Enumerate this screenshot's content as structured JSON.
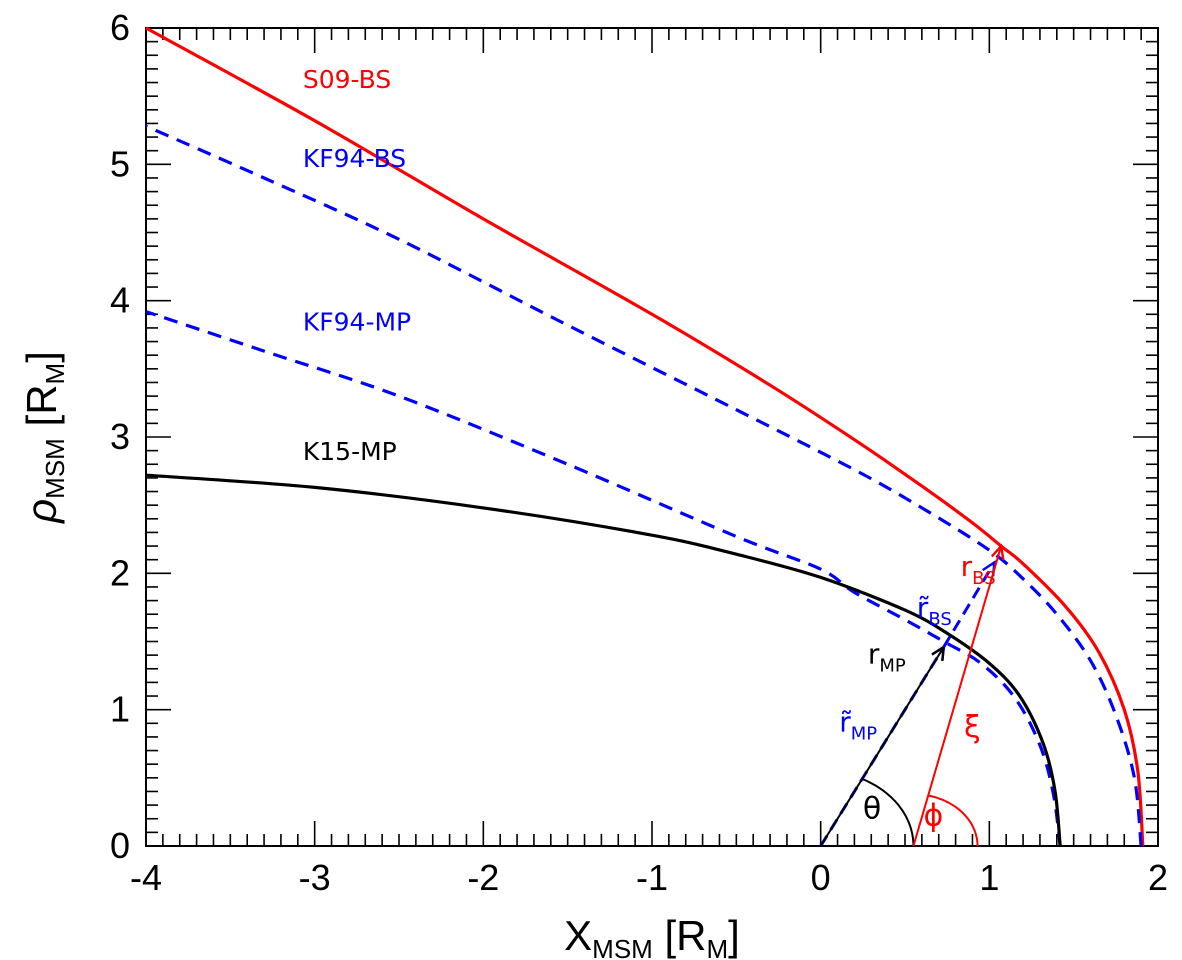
{
  "chart_data": {
    "type": "line",
    "xlabel": {
      "main": "X",
      "sub": "MSM",
      "unit_open": " [R",
      "unit_sub": "M",
      "unit_close": "]"
    },
    "ylabel": {
      "main": "ρ",
      "sub": "MSM",
      "unit_open": " [R",
      "unit_sub": "M",
      "unit_close": "]"
    },
    "xlim": [
      -4,
      2
    ],
    "ylim": [
      0,
      6
    ],
    "x_ticks": [
      -4,
      -3,
      -2,
      -1,
      0,
      1,
      2
    ],
    "x_tick_labels": [
      "-4",
      "-3",
      "-2",
      "-1",
      "0",
      "1",
      "2"
    ],
    "y_ticks": [
      0,
      1,
      2,
      3,
      4,
      5,
      6
    ],
    "y_tick_labels": [
      "0",
      "1",
      "2",
      "3",
      "4",
      "5",
      "6"
    ],
    "grid": false,
    "series": [
      {
        "name": "S09-BS",
        "color": "#ff0000",
        "style": "solid",
        "x": [
          1.91,
          1.88,
          1.8,
          1.65,
          1.45,
          1.2,
          1.07,
          0.9,
          0.6,
          0.2,
          -0.3,
          -1.0,
          -2.0,
          -3.0,
          -4.0
        ],
        "y": [
          0.0,
          0.55,
          1.0,
          1.42,
          1.76,
          2.07,
          2.2,
          2.37,
          2.64,
          2.98,
          3.38,
          3.9,
          4.6,
          5.32,
          6.0
        ]
      },
      {
        "name": "KF94-BS",
        "color": "#0000ff",
        "style": "dashed",
        "x": [
          1.9,
          1.86,
          1.75,
          1.6,
          1.4,
          1.2,
          1.0,
          0.6,
          0.2,
          -0.5,
          -1.5,
          -2.5,
          -3.3,
          -4.0
        ],
        "y": [
          0.0,
          0.5,
          0.96,
          1.36,
          1.7,
          1.96,
          2.17,
          2.48,
          2.76,
          3.2,
          3.82,
          4.45,
          4.9,
          5.28
        ]
      },
      {
        "name": "KF94-MP",
        "color": "#0000ff",
        "style": "dashed",
        "x": [
          1.42,
          1.38,
          1.3,
          1.15,
          0.95,
          0.73,
          0.5,
          0.2,
          0.0,
          -0.5,
          -1.5,
          -2.5,
          -3.3,
          -4.0
        ],
        "y": [
          0.0,
          0.38,
          0.74,
          1.09,
          1.34,
          1.5,
          1.66,
          1.86,
          2.03,
          2.27,
          2.8,
          3.3,
          3.63,
          3.92
        ]
      },
      {
        "name": "K15-MP",
        "color": "#000000",
        "style": "solid",
        "x": [
          1.42,
          1.39,
          1.32,
          1.18,
          1.0,
          0.75,
          0.5,
          0.0,
          -0.5,
          -1.0,
          -2.0,
          -3.0,
          -4.0
        ],
        "y": [
          0.0,
          0.4,
          0.75,
          1.1,
          1.34,
          1.56,
          1.73,
          1.97,
          2.14,
          2.28,
          2.48,
          2.63,
          2.72
        ]
      }
    ],
    "curve_labels": [
      {
        "text": "S09-BS",
        "color": "#ff0000",
        "x": -3.07,
        "y": 5.56
      },
      {
        "text": "KF94-BS",
        "color": "#0000ff",
        "x": -3.07,
        "y": 4.98
      },
      {
        "text": "KF94-MP",
        "color": "#0000ff",
        "x": -3.07,
        "y": 3.78
      },
      {
        "text": "K15-MP",
        "color": "#000000",
        "x": -3.07,
        "y": 2.83
      }
    ],
    "vectors": [
      {
        "name": "r-tilde-MP",
        "color": "#0000ff",
        "dash": true,
        "from": [
          0,
          0
        ],
        "to": [
          0.73,
          1.46
        ]
      },
      {
        "name": "r-MP",
        "color": "#000000",
        "dash": false,
        "from": [
          0,
          0
        ],
        "to": [
          0.73,
          1.46
        ]
      },
      {
        "name": "r-tilde-BS",
        "color": "#0000ff",
        "dash": true,
        "from": [
          0.73,
          1.46
        ],
        "to": [
          1.03,
          2.08
        ]
      },
      {
        "name": "r-BS",
        "color": "#ff0000",
        "dash": false,
        "from": [
          0.55,
          0
        ],
        "to": [
          1.07,
          2.2
        ]
      }
    ],
    "annotations": [
      {
        "name": "r-bs",
        "base": "r",
        "sub": "BS",
        "tilde": false,
        "color": "#ff0000",
        "x": 0.83,
        "y": 1.98
      },
      {
        "name": "r-tilde-bs",
        "base": "r",
        "sub": "BS",
        "tilde": true,
        "color": "#0000ff",
        "x": 0.57,
        "y": 1.68
      },
      {
        "name": "r-mp",
        "base": "r",
        "sub": "MP",
        "tilde": false,
        "color": "#000000",
        "x": 0.28,
        "y": 1.34
      },
      {
        "name": "r-tilde-mp",
        "base": "r",
        "sub": "MP",
        "tilde": true,
        "color": "#0000ff",
        "x": 0.11,
        "y": 0.84
      }
    ],
    "angle_labels": [
      {
        "name": "theta",
        "text": "θ",
        "color": "#000000",
        "x": 0.25,
        "y": 0.2
      },
      {
        "name": "phi",
        "text": "ϕ",
        "color": "#ff0000",
        "x": 0.61,
        "y": 0.15
      },
      {
        "name": "xi",
        "text": "ξ",
        "color": "#ff0000",
        "x": 0.85,
        "y": 0.8
      }
    ],
    "angle_arcs": [
      {
        "name": "theta-arc",
        "color": "#000000",
        "cx": 0,
        "cy": 0,
        "r": 0.55,
        "start_deg": 0,
        "end_deg": 63.4
      },
      {
        "name": "phi-arc",
        "color": "#ff0000",
        "cx": 0.55,
        "cy": 0,
        "r": 0.38,
        "start_deg": 0,
        "end_deg": 76.7
      }
    ]
  }
}
